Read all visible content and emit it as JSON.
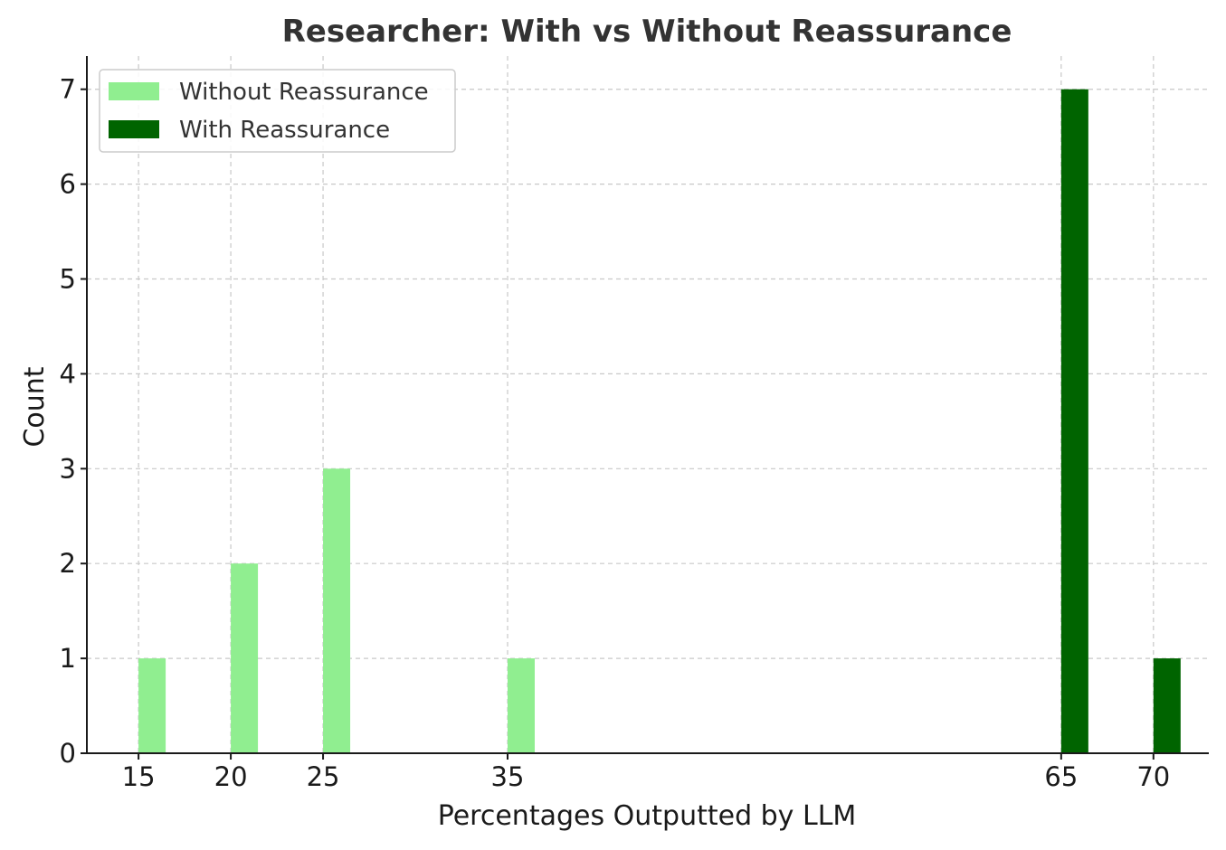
{
  "chart_data": {
    "type": "bar",
    "title": "Researcher: With vs Without Reassurance",
    "xlabel": "Percentages Outputted by LLM",
    "ylabel": "Count",
    "xticks": [
      15,
      20,
      25,
      35,
      65,
      70
    ],
    "yticks": [
      0,
      1,
      2,
      3,
      4,
      5,
      6,
      7
    ],
    "xlim": [
      12.2,
      73
    ],
    "ylim": [
      0,
      7.35
    ],
    "grid": true,
    "legend_position": "top-left",
    "series": [
      {
        "name": "Without Reassurance",
        "color": "#90ee90",
        "x": [
          15,
          20,
          25,
          35
        ],
        "values": [
          1,
          2,
          3,
          1
        ]
      },
      {
        "name": "With Reassurance",
        "color": "#006400",
        "x": [
          65,
          70
        ],
        "values": [
          7,
          1
        ]
      }
    ]
  }
}
